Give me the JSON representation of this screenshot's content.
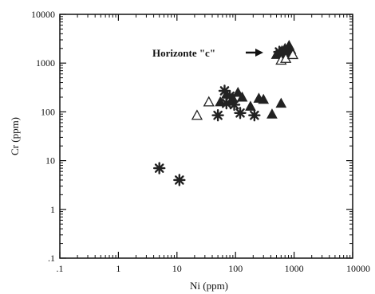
{
  "chart_data": {
    "type": "scatter",
    "title": "",
    "xlabel": "Ni (ppm)",
    "ylabel": "Cr (ppm)",
    "xscale": "log",
    "yscale": "log",
    "xlim": [
      0.1,
      10000
    ],
    "ylim": [
      0.1,
      10000
    ],
    "x_ticks": [
      0.1,
      1,
      10,
      100,
      1000,
      10000
    ],
    "x_tick_labels": [
      ".1",
      "1",
      "10",
      "100",
      "1000",
      "10000"
    ],
    "y_ticks": [
      0.1,
      1,
      10,
      100,
      1000,
      10000
    ],
    "y_tick_labels": [
      ".1",
      "1",
      "10",
      "100",
      "1000",
      "10000"
    ],
    "grid": false,
    "legend": "none",
    "annotation": {
      "text": "Horizonte \"c\"",
      "arrow": "right",
      "points_to": [
        550,
        1500
      ]
    },
    "series": [
      {
        "marker": "filled-triangle",
        "color": "#222222",
        "points": [
          [
            55,
            160
          ],
          [
            70,
            230
          ],
          [
            90,
            190
          ],
          [
            110,
            250
          ],
          [
            130,
            200
          ],
          [
            180,
            130
          ],
          [
            250,
            190
          ],
          [
            300,
            180
          ],
          [
            420,
            90
          ],
          [
            600,
            150
          ],
          [
            500,
            1500
          ],
          [
            580,
            1700
          ],
          [
            620,
            1800
          ],
          [
            650,
            1700
          ],
          [
            700,
            2000
          ],
          [
            760,
            1600
          ],
          [
            820,
            2300
          ],
          [
            880,
            1900
          ]
        ]
      },
      {
        "marker": "open-triangle",
        "color": "#222222",
        "points": [
          [
            22,
            85
          ],
          [
            35,
            160
          ],
          [
            600,
            1150
          ],
          [
            720,
            1250
          ],
          [
            950,
            1500
          ]
        ]
      },
      {
        "marker": "asterisk",
        "color": "#222222",
        "points": [
          [
            5,
            7
          ],
          [
            11,
            4
          ],
          [
            50,
            85
          ],
          [
            65,
            270
          ],
          [
            70,
            150
          ],
          [
            80,
            210
          ],
          [
            95,
            140
          ],
          [
            120,
            95
          ],
          [
            210,
            85
          ],
          [
            560,
            1700
          ]
        ]
      }
    ]
  }
}
